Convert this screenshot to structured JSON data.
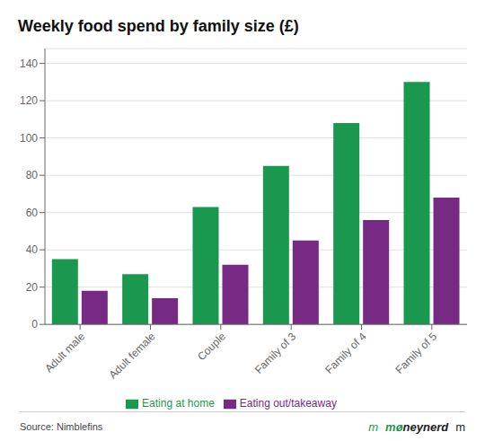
{
  "chart_data": {
    "type": "bar",
    "title": "Weekly food spend by family size (£)",
    "categories": [
      "Adult male",
      "Adult female",
      "Couple",
      "Family of 3",
      "Family of 4",
      "Family of 5"
    ],
    "series": [
      {
        "name": "Eating at home",
        "color": "#1a9850",
        "values": [
          35,
          27,
          63,
          85,
          108,
          130
        ]
      },
      {
        "name": "Eating out/takeaway",
        "color": "#762a83",
        "values": [
          18,
          14,
          32,
          45,
          56,
          68
        ]
      }
    ],
    "ylim": [
      0,
      148
    ],
    "yticks": [
      0,
      20,
      40,
      60,
      80,
      100,
      120,
      140
    ],
    "grid": true,
    "legend": "bottom",
    "annotations": [
      "Source: Nimblefins",
      "m",
      "møneynerd",
      "m"
    ]
  }
}
